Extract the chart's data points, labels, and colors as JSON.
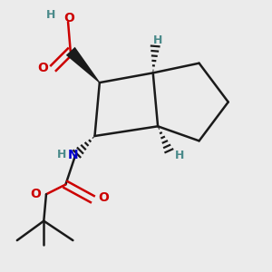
{
  "bg_color": "#ebebeb",
  "bond_color": "#1a1a1a",
  "o_color": "#cc0000",
  "n_color": "#0000cc",
  "h_color": "#4a8a8a",
  "line_width": 1.8,
  "fig_w": 3.0,
  "fig_h": 3.0,
  "dpi": 100,
  "xlim": [
    -0.05,
    1.05
  ],
  "ylim": [
    -0.05,
    1.05
  ]
}
